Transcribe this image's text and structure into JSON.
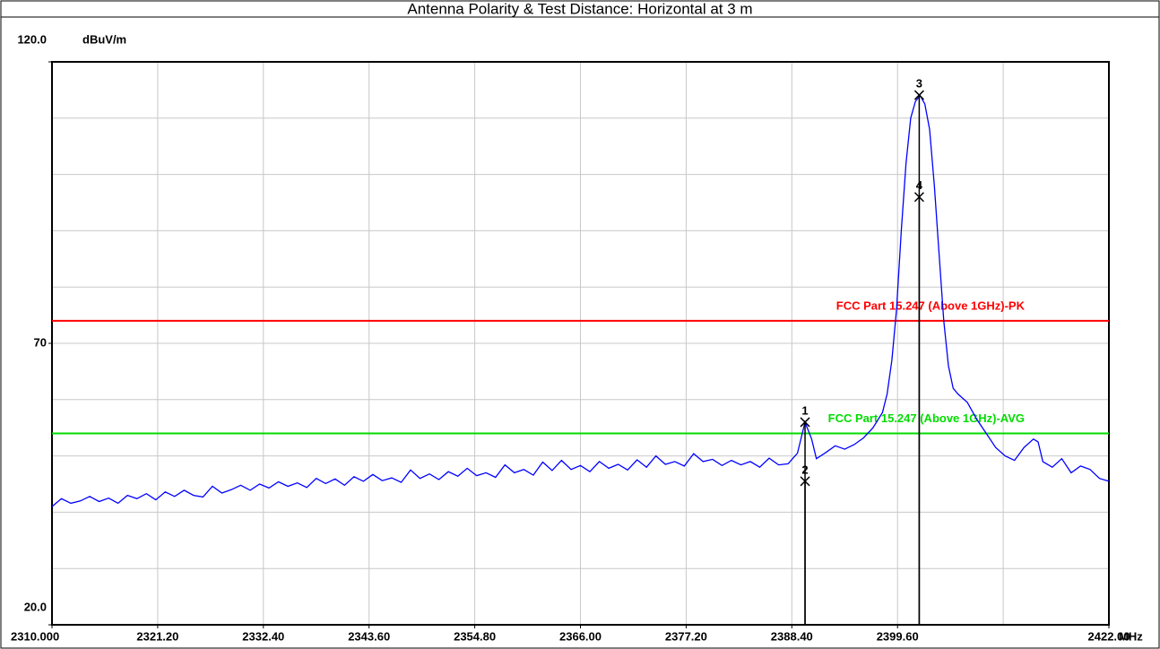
{
  "chart_data": {
    "type": "line",
    "title": "Antenna Polarity & Test Distance: Horizontal at 3 m",
    "y_unit": "dBuV/m",
    "x_unit": "MHz",
    "xlim": [
      2310,
      2422
    ],
    "ylim": [
      20,
      120
    ],
    "xticks": [
      {
        "value": 2310,
        "label": "2310.000"
      },
      {
        "value": 2321.2,
        "label": "2321.20"
      },
      {
        "value": 2332.4,
        "label": "2332.40"
      },
      {
        "value": 2343.6,
        "label": "2343.60"
      },
      {
        "value": 2354.8,
        "label": "2354.80"
      },
      {
        "value": 2366,
        "label": "2366.00"
      },
      {
        "value": 2377.2,
        "label": "2377.20"
      },
      {
        "value": 2388.4,
        "label": "2388.40"
      },
      {
        "value": 2399.6,
        "label": "2399.60"
      },
      {
        "value": 2422,
        "label": "2422.00"
      }
    ],
    "yticks": [
      {
        "value": 20,
        "label": "20.0"
      },
      70,
      {
        "value": 120,
        "label": "120.0"
      }
    ],
    "xgrid": [
      2321.2,
      2332.4,
      2343.6,
      2354.8,
      2366,
      2377.2,
      2388.4,
      2399.6,
      2410.8
    ],
    "ygrid": [
      30,
      40,
      50,
      60,
      70,
      80,
      90,
      100,
      110
    ],
    "grid": true,
    "limits": [
      {
        "name": "FCC Part 15.247 (Above 1GHz)-PK",
        "value": 74,
        "color": "#ff0000"
      },
      {
        "name": "FCC Part 15.247 (Above 1GHz)-AVG",
        "value": 54,
        "color": "#00dd00"
      }
    ],
    "markers": [
      {
        "label": "1",
        "x": 2389.8,
        "value": 56
      },
      {
        "label": "2",
        "x": 2389.8,
        "value": 45.5
      },
      {
        "label": "3",
        "x": 2401.9,
        "value": 114.1
      },
      {
        "label": "4",
        "x": 2401.9,
        "value": 96
      }
    ],
    "series": [
      {
        "color": "#0000ff",
        "x": [
          2310,
          2311,
          2312,
          2313,
          2314,
          2315,
          2316,
          2317,
          2318,
          2319,
          2320,
          2321,
          2322,
          2323,
          2324,
          2325,
          2326,
          2327,
          2328,
          2329,
          2330,
          2331,
          2332,
          2333,
          2334,
          2335,
          2336,
          2337,
          2338,
          2339,
          2340,
          2341,
          2342,
          2343,
          2344,
          2345,
          2346,
          2347,
          2348,
          2349,
          2350,
          2351,
          2352,
          2353,
          2354,
          2355,
          2356,
          2357,
          2358,
          2359,
          2360,
          2361,
          2362,
          2363,
          2364,
          2365,
          2366,
          2367,
          2368,
          2369,
          2370,
          2371,
          2372,
          2373,
          2374,
          2375,
          2376,
          2377,
          2378,
          2379,
          2380,
          2381,
          2382,
          2383,
          2384,
          2385,
          2386,
          2387,
          2388,
          2389,
          2389.8,
          2390.5,
          2391,
          2392,
          2393,
          2394,
          2395,
          2396,
          2397,
          2398,
          2398.5,
          2399,
          2399.5,
          2400,
          2400.5,
          2401,
          2401.5,
          2402,
          2402.5,
          2403,
          2403.5,
          2404,
          2404.5,
          2405,
          2405.5,
          2406,
          2407,
          2408,
          2409,
          2410,
          2411,
          2412,
          2413,
          2414,
          2414.5,
          2415,
          2416,
          2417,
          2418,
          2419,
          2420,
          2421,
          2422
        ],
        "values": [
          41.0,
          42.4,
          41.6,
          42.0,
          42.8,
          41.9,
          42.5,
          41.6,
          43.0,
          42.4,
          43.3,
          42.2,
          43.6,
          42.8,
          43.9,
          43.0,
          42.7,
          44.6,
          43.4,
          44.0,
          44.8,
          43.9,
          45.0,
          44.3,
          45.4,
          44.6,
          45.2,
          44.4,
          46.0,
          45.1,
          45.9,
          44.8,
          46.3,
          45.5,
          46.7,
          45.6,
          46.1,
          45.3,
          47.5,
          46.0,
          46.8,
          45.8,
          47.2,
          46.4,
          47.8,
          46.5,
          47.0,
          46.2,
          48.4,
          47.0,
          47.6,
          46.6,
          48.9,
          47.4,
          49.2,
          47.6,
          48.3,
          47.2,
          49.0,
          47.8,
          48.5,
          47.5,
          49.3,
          48.0,
          50.0,
          48.5,
          49.0,
          48.2,
          50.4,
          49.0,
          49.4,
          48.3,
          49.2,
          48.4,
          49.0,
          48.0,
          49.6,
          48.4,
          48.6,
          50.5,
          56.0,
          53.0,
          49.5,
          50.6,
          51.8,
          51.2,
          52.0,
          53.2,
          55.0,
          57.7,
          61,
          67,
          76,
          90,
          102,
          110,
          113,
          114,
          112.5,
          108,
          98,
          86,
          74,
          66,
          62,
          61,
          59.5,
          56.5,
          54,
          51.5,
          50,
          49.2,
          51.5,
          53,
          52.5,
          49,
          48,
          49.5,
          47.0,
          48.2,
          47.6,
          46.0,
          45.5
        ]
      }
    ]
  }
}
